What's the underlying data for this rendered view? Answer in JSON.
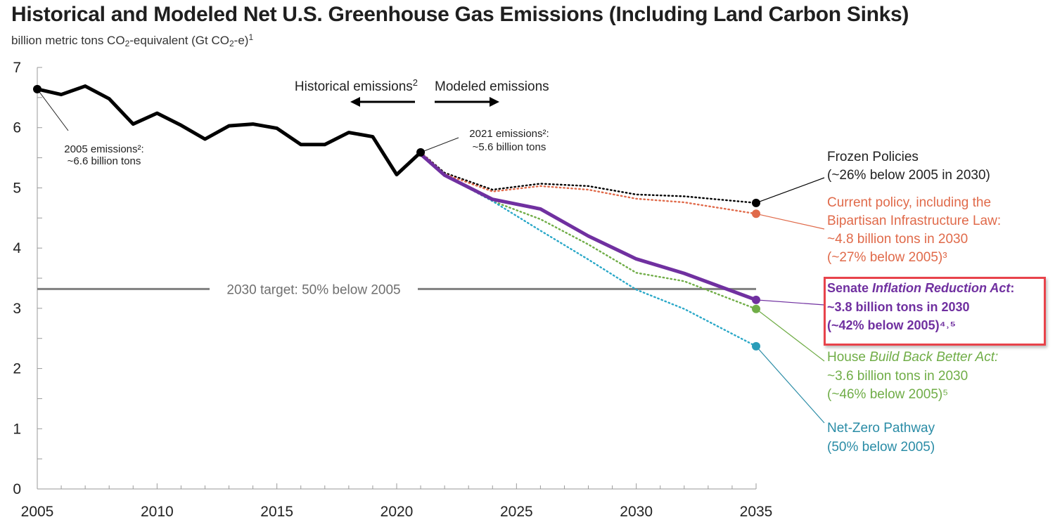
{
  "title": "Historical and Modeled Net U.S. Greenhouse Gas Emissions (Including Land Carbon Sinks)",
  "subtitle": {
    "unit_prefix": "billion metric tons CO",
    "sub1": "2",
    "unit_mid": "-equivalent (Gt CO",
    "sub2": "2",
    "unit_suffix": "-e)",
    "note": "1"
  },
  "colors": {
    "historical": "#000000",
    "frozen": "#000000",
    "current": "#e06a4a",
    "ira": "#7030a0",
    "bbb": "#70ad47",
    "netzero": "#2aa8c8",
    "netzero_label": "#2a8ca6",
    "target": "#7f7f7f",
    "highlight_box": "#e8434b"
  },
  "headers": {
    "historical": "Historical emissions",
    "historical_note": "2",
    "modeled": "Modeled emissions"
  },
  "annotations": {
    "e2005_line1": "2005 emissions²:",
    "e2005_line2": "~6.6 billion tons",
    "e2021_line1": "2021 emissions²:",
    "e2021_line2": "~5.6 billion tons"
  },
  "target_label": "2030 target: 50% below 2005",
  "labels": {
    "frozen": [
      "Frozen Policies",
      "(~26% below 2005 in 2030)"
    ],
    "current": [
      "Current policy, including the",
      "Bipartisan Infrastructure Law:",
      "~4.8 billion tons in 2030",
      "(~27% below 2005)³"
    ],
    "ira_prefix": "Senate ",
    "ira_italic": "Inflation Reduction Act",
    "ira_suffix": ":",
    "ira_lines": [
      "~3.8 billion tons in 2030",
      "(~42% below 2005)⁴˒⁵"
    ],
    "bbb_prefix": "House ",
    "bbb_italic": "Build Back Better Act:",
    "bbb_lines": [
      "~3.6 billion tons in 2030",
      "(~46% below 2005)⁵"
    ],
    "netzero": [
      "Net-Zero Pathway",
      "(50% below 2005)"
    ]
  },
  "chart_data": {
    "type": "line",
    "title": "Historical and Modeled Net U.S. Greenhouse Gas Emissions (Including Land Carbon Sinks)",
    "ylabel": "billion metric tons CO2-equivalent (Gt CO2-e)",
    "xlim": [
      2005,
      2035
    ],
    "ylim": [
      0,
      7
    ],
    "x_ticks": [
      "2005",
      "2010",
      "2015",
      "2020",
      "2025",
      "2030",
      "2035"
    ],
    "y_ticks": [
      "0",
      "1",
      "2",
      "3",
      "4",
      "5",
      "6",
      "7"
    ],
    "target": {
      "label": "2030 target: 50% below 2005",
      "value": 3.32,
      "x_range": [
        2005,
        2035
      ]
    },
    "series": [
      {
        "name": "Historical emissions",
        "key": "historical",
        "style": "solid",
        "x": [
          2005,
          2006,
          2007,
          2008,
          2009,
          2010,
          2011,
          2012,
          2013,
          2014,
          2015,
          2016,
          2017,
          2018,
          2019,
          2020,
          2021
        ],
        "y": [
          6.64,
          6.55,
          6.69,
          6.48,
          6.06,
          6.24,
          6.04,
          5.81,
          6.03,
          6.06,
          5.99,
          5.72,
          5.72,
          5.92,
          5.85,
          5.22,
          5.59
        ]
      },
      {
        "name": "Frozen Policies",
        "key": "frozen",
        "style": "dotted",
        "x": [
          2021,
          2022,
          2024,
          2026,
          2028,
          2030,
          2032,
          2035
        ],
        "y": [
          5.59,
          5.25,
          4.97,
          5.07,
          5.03,
          4.89,
          4.86,
          4.75
        ]
      },
      {
        "name": "Current policy, including the Bipartisan Infrastructure Law",
        "key": "current",
        "style": "dotted",
        "x": [
          2021,
          2022,
          2024,
          2026,
          2028,
          2030,
          2032,
          2035
        ],
        "y": [
          5.59,
          5.23,
          4.94,
          5.03,
          4.97,
          4.82,
          4.76,
          4.57
        ]
      },
      {
        "name": "Senate Inflation Reduction Act",
        "key": "ira",
        "style": "solid",
        "x": [
          2021,
          2022,
          2024,
          2026,
          2028,
          2030,
          2032,
          2035
        ],
        "y": [
          5.56,
          5.21,
          4.81,
          4.65,
          4.2,
          3.82,
          3.58,
          3.14
        ]
      },
      {
        "name": "House Build Back Better Act",
        "key": "bbb",
        "style": "dotted",
        "x": [
          2021,
          2022,
          2024,
          2026,
          2028,
          2030,
          2032,
          2035
        ],
        "y": [
          5.56,
          5.21,
          4.78,
          4.48,
          4.06,
          3.59,
          3.45,
          2.99
        ]
      },
      {
        "name": "Net-Zero Pathway",
        "key": "netzero",
        "style": "dotted",
        "x": [
          2021,
          2022,
          2024,
          2026,
          2028,
          2030,
          2032,
          2035
        ],
        "y": [
          5.56,
          5.21,
          4.78,
          4.29,
          3.81,
          3.31,
          2.99,
          2.37
        ]
      }
    ]
  }
}
